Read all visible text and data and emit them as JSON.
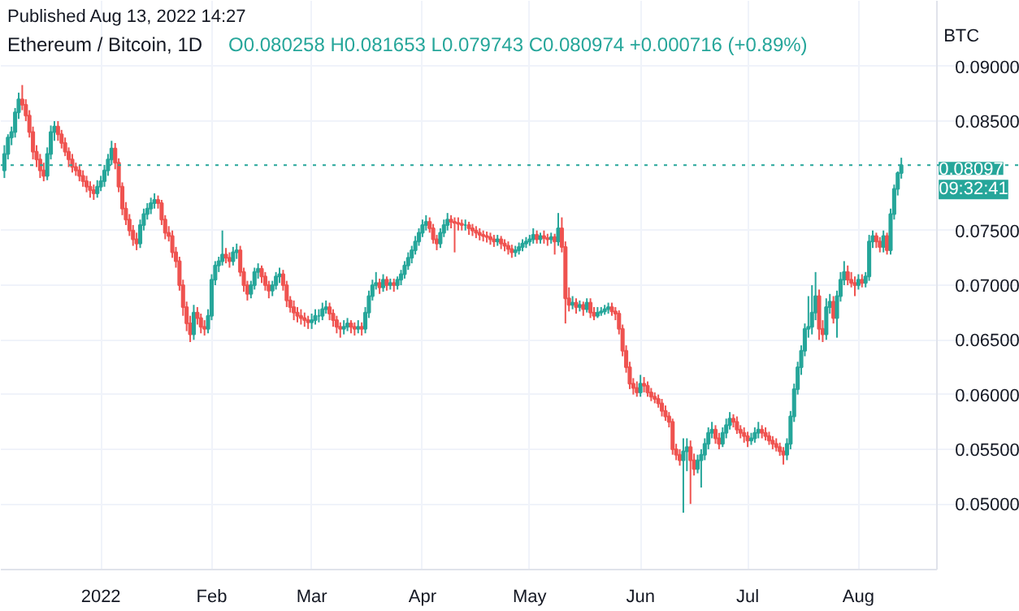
{
  "chart_data": {
    "type": "candlestick",
    "title": "Ethereum / Bitcoin, 1D",
    "subtitle": "O0.080258 H0.081653 L0.079743 C0.080974 +0.000716 (+0.89%)",
    "ylabel": "BTC",
    "annotations": [
      "Published Aug 13, 2022 14:27",
      "09:32:41"
    ],
    "xlim": [
      "2021-12-04",
      "2022-08-23"
    ],
    "xticks": [
      {
        "value": "2022-01-01",
        "label": "2022"
      },
      {
        "value": "2022-02-01",
        "label": "Feb"
      },
      {
        "value": "2022-03-01",
        "label": "Mar"
      },
      {
        "value": "2022-04-01",
        "label": "Apr"
      },
      {
        "value": "2022-05-01",
        "label": "May"
      },
      {
        "value": "2022-06-01",
        "label": "Jun"
      },
      {
        "value": "2022-07-01",
        "label": "Jul"
      },
      {
        "value": "2022-08-01",
        "label": "Aug"
      }
    ],
    "ylim": [
      0.044,
      0.096
    ],
    "yticks": [
      {
        "value": 0.05,
        "label": "0.05000"
      },
      {
        "value": 0.055,
        "label": "0.05500"
      },
      {
        "value": 0.06,
        "label": "0.06000"
      },
      {
        "value": 0.065,
        "label": "0.06500"
      },
      {
        "value": 0.07,
        "label": "0.07000"
      },
      {
        "value": 0.075,
        "label": "0.07500"
      },
      {
        "value": 0.085,
        "label": "0.08500"
      },
      {
        "value": 0.09,
        "label": "0.09000"
      }
    ],
    "grid": true,
    "ref_lines": [
      {
        "axis": "y",
        "value": 0.08097,
        "label": "0.08097",
        "color": "#26a69a",
        "line_style": "dotted"
      }
    ],
    "x": [
      "2021-12-05",
      "2021-12-06",
      "2021-12-07",
      "2021-12-08",
      "2021-12-09",
      "2021-12-10",
      "2021-12-11",
      "2021-12-12",
      "2021-12-13",
      "2021-12-14",
      "2021-12-15",
      "2021-12-16",
      "2021-12-17",
      "2021-12-18",
      "2021-12-19",
      "2021-12-20",
      "2021-12-21",
      "2021-12-22",
      "2021-12-23",
      "2021-12-24",
      "2021-12-25",
      "2021-12-26",
      "2021-12-27",
      "2021-12-28",
      "2021-12-29",
      "2021-12-30",
      "2021-12-31",
      "2022-01-01",
      "2022-01-02",
      "2022-01-03",
      "2022-01-04",
      "2022-01-05",
      "2022-01-06",
      "2022-01-07",
      "2022-01-08",
      "2022-01-09",
      "2022-01-10",
      "2022-01-11",
      "2022-01-12",
      "2022-01-13",
      "2022-01-14",
      "2022-01-15",
      "2022-01-16",
      "2022-01-17",
      "2022-01-18",
      "2022-01-19",
      "2022-01-20",
      "2022-01-21",
      "2022-01-22",
      "2022-01-23",
      "2022-01-24",
      "2022-01-25",
      "2022-01-26",
      "2022-01-27",
      "2022-01-28",
      "2022-01-29",
      "2022-01-30",
      "2022-01-31",
      "2022-02-01",
      "2022-02-02",
      "2022-02-03",
      "2022-02-04",
      "2022-02-05",
      "2022-02-06",
      "2022-02-07",
      "2022-02-08",
      "2022-02-09",
      "2022-02-10",
      "2022-02-11",
      "2022-02-12",
      "2022-02-13",
      "2022-02-14",
      "2022-02-15",
      "2022-02-16",
      "2022-02-17",
      "2022-02-18",
      "2022-02-19",
      "2022-02-20",
      "2022-02-21",
      "2022-02-22",
      "2022-02-23",
      "2022-02-24",
      "2022-02-25",
      "2022-02-26",
      "2022-02-27",
      "2022-02-28",
      "2022-03-01",
      "2022-03-02",
      "2022-03-03",
      "2022-03-04",
      "2022-03-05",
      "2022-03-06",
      "2022-03-07",
      "2022-03-08",
      "2022-03-09",
      "2022-03-10",
      "2022-03-11",
      "2022-03-12",
      "2022-03-13",
      "2022-03-14",
      "2022-03-15",
      "2022-03-16",
      "2022-03-17",
      "2022-03-18",
      "2022-03-19",
      "2022-03-20",
      "2022-03-21",
      "2022-03-22",
      "2022-03-23",
      "2022-03-24",
      "2022-03-25",
      "2022-03-26",
      "2022-03-27",
      "2022-03-28",
      "2022-03-29",
      "2022-03-30",
      "2022-03-31",
      "2022-04-01",
      "2022-04-02",
      "2022-04-03",
      "2022-04-04",
      "2022-04-05",
      "2022-04-06",
      "2022-04-07",
      "2022-04-08",
      "2022-04-09",
      "2022-04-10",
      "2022-04-11",
      "2022-04-12",
      "2022-04-13",
      "2022-04-14",
      "2022-04-15",
      "2022-04-16",
      "2022-04-17",
      "2022-04-18",
      "2022-04-19",
      "2022-04-20",
      "2022-04-21",
      "2022-04-22",
      "2022-04-23",
      "2022-04-24",
      "2022-04-25",
      "2022-04-26",
      "2022-04-27",
      "2022-04-28",
      "2022-04-29",
      "2022-04-30",
      "2022-05-01",
      "2022-05-02",
      "2022-05-03",
      "2022-05-04",
      "2022-05-05",
      "2022-05-06",
      "2022-05-07",
      "2022-05-08",
      "2022-05-09",
      "2022-05-10",
      "2022-05-11",
      "2022-05-12",
      "2022-05-13",
      "2022-05-14",
      "2022-05-15",
      "2022-05-16",
      "2022-05-17",
      "2022-05-18",
      "2022-05-19",
      "2022-05-20",
      "2022-05-21",
      "2022-05-22",
      "2022-05-23",
      "2022-05-24",
      "2022-05-25",
      "2022-05-26",
      "2022-05-27",
      "2022-05-28",
      "2022-05-29",
      "2022-05-30",
      "2022-05-31",
      "2022-06-01",
      "2022-06-02",
      "2022-06-03",
      "2022-06-04",
      "2022-06-05",
      "2022-06-06",
      "2022-06-07",
      "2022-06-08",
      "2022-06-09",
      "2022-06-10",
      "2022-06-11",
      "2022-06-12",
      "2022-06-13",
      "2022-06-14",
      "2022-06-15",
      "2022-06-16",
      "2022-06-17",
      "2022-06-18",
      "2022-06-19",
      "2022-06-20",
      "2022-06-21",
      "2022-06-22",
      "2022-06-23",
      "2022-06-24",
      "2022-06-25",
      "2022-06-26",
      "2022-06-27",
      "2022-06-28",
      "2022-06-29",
      "2022-06-30",
      "2022-07-01",
      "2022-07-02",
      "2022-07-03",
      "2022-07-04",
      "2022-07-05",
      "2022-07-06",
      "2022-07-07",
      "2022-07-08",
      "2022-07-09",
      "2022-07-10",
      "2022-07-11",
      "2022-07-12",
      "2022-07-13",
      "2022-07-14",
      "2022-07-15",
      "2022-07-16",
      "2022-07-17",
      "2022-07-18",
      "2022-07-19",
      "2022-07-20",
      "2022-07-21",
      "2022-07-22",
      "2022-07-23",
      "2022-07-24",
      "2022-07-25",
      "2022-07-26",
      "2022-07-27",
      "2022-07-28",
      "2022-07-29",
      "2022-07-30",
      "2022-07-31",
      "2022-08-01",
      "2022-08-02",
      "2022-08-03",
      "2022-08-04",
      "2022-08-05",
      "2022-08-06",
      "2022-08-07",
      "2022-08-08",
      "2022-08-09",
      "2022-08-10",
      "2022-08-11",
      "2022-08-12",
      "2022-08-13"
    ],
    "ohlc": [
      [
        0.0805,
        0.0828,
        0.0798,
        0.082
      ],
      [
        0.082,
        0.0838,
        0.0815,
        0.0835
      ],
      [
        0.0835,
        0.0845,
        0.0828,
        0.084
      ],
      [
        0.084,
        0.0862,
        0.0835,
        0.0858
      ],
      [
        0.0858,
        0.0876,
        0.0852,
        0.087
      ],
      [
        0.087,
        0.0883,
        0.086,
        0.0865
      ],
      [
        0.0865,
        0.087,
        0.085,
        0.0855
      ],
      [
        0.0855,
        0.086,
        0.0835,
        0.084
      ],
      [
        0.084,
        0.0845,
        0.0815,
        0.0822
      ],
      [
        0.0822,
        0.0828,
        0.0808,
        0.0815
      ],
      [
        0.0815,
        0.082,
        0.0798,
        0.0805
      ],
      [
        0.0805,
        0.0812,
        0.0795,
        0.08
      ],
      [
        0.08,
        0.0826,
        0.0796,
        0.082
      ],
      [
        0.082,
        0.0846,
        0.0815,
        0.084
      ],
      [
        0.084,
        0.085,
        0.0832,
        0.0845
      ],
      [
        0.0845,
        0.085,
        0.0832,
        0.0838
      ],
      [
        0.0838,
        0.0842,
        0.0825,
        0.083
      ],
      [
        0.083,
        0.0835,
        0.0818,
        0.0822
      ],
      [
        0.0822,
        0.0826,
        0.0808,
        0.0815
      ],
      [
        0.0815,
        0.082,
        0.0803,
        0.0808
      ],
      [
        0.0808,
        0.0812,
        0.08,
        0.0805
      ],
      [
        0.0805,
        0.081,
        0.0795,
        0.08
      ],
      [
        0.08,
        0.0805,
        0.079,
        0.0795
      ],
      [
        0.0795,
        0.08,
        0.0785,
        0.079
      ],
      [
        0.079,
        0.0795,
        0.078,
        0.0787
      ],
      [
        0.0787,
        0.0792,
        0.0778,
        0.0784
      ],
      [
        0.0784,
        0.0796,
        0.078,
        0.079
      ],
      [
        0.079,
        0.08,
        0.0786,
        0.0795
      ],
      [
        0.0795,
        0.081,
        0.079,
        0.0805
      ],
      [
        0.0805,
        0.082,
        0.08,
        0.0815
      ],
      [
        0.0815,
        0.0832,
        0.081,
        0.0825
      ],
      [
        0.0825,
        0.083,
        0.0806,
        0.0812
      ],
      [
        0.0812,
        0.0816,
        0.0785,
        0.079
      ],
      [
        0.079,
        0.0794,
        0.0764,
        0.077
      ],
      [
        0.077,
        0.0776,
        0.0755,
        0.076
      ],
      [
        0.076,
        0.0765,
        0.0745,
        0.075
      ],
      [
        0.075,
        0.0755,
        0.0736,
        0.0742
      ],
      [
        0.0742,
        0.0748,
        0.0732,
        0.0738
      ],
      [
        0.0738,
        0.076,
        0.0734,
        0.0755
      ],
      [
        0.0755,
        0.077,
        0.075,
        0.0765
      ],
      [
        0.0765,
        0.0775,
        0.076,
        0.077
      ],
      [
        0.077,
        0.078,
        0.0765,
        0.0775
      ],
      [
        0.0775,
        0.0784,
        0.077,
        0.0778
      ],
      [
        0.0778,
        0.0782,
        0.077,
        0.0775
      ],
      [
        0.0775,
        0.0778,
        0.0755,
        0.076
      ],
      [
        0.076,
        0.0764,
        0.0742,
        0.0748
      ],
      [
        0.0748,
        0.0754,
        0.074,
        0.0745
      ],
      [
        0.0745,
        0.075,
        0.0725,
        0.073
      ],
      [
        0.073,
        0.0735,
        0.0716,
        0.0722
      ],
      [
        0.0722,
        0.0726,
        0.0695,
        0.07
      ],
      [
        0.07,
        0.0705,
        0.0672,
        0.068
      ],
      [
        0.068,
        0.0685,
        0.0658,
        0.0665
      ],
      [
        0.0665,
        0.0672,
        0.0648,
        0.0655
      ],
      [
        0.0655,
        0.0682,
        0.065,
        0.0675
      ],
      [
        0.0675,
        0.068,
        0.0664,
        0.067
      ],
      [
        0.067,
        0.0674,
        0.0656,
        0.0662
      ],
      [
        0.0662,
        0.0668,
        0.0654,
        0.066
      ],
      [
        0.066,
        0.0678,
        0.0656,
        0.0672
      ],
      [
        0.0672,
        0.071,
        0.0668,
        0.0705
      ],
      [
        0.0705,
        0.0722,
        0.07,
        0.0718
      ],
      [
        0.0718,
        0.0726,
        0.0712,
        0.0722
      ],
      [
        0.0722,
        0.075,
        0.0718,
        0.0728
      ],
      [
        0.0728,
        0.0734,
        0.072,
        0.0725
      ],
      [
        0.0725,
        0.073,
        0.0716,
        0.0722
      ],
      [
        0.0722,
        0.0735,
        0.0718,
        0.073
      ],
      [
        0.073,
        0.0738,
        0.0724,
        0.0732
      ],
      [
        0.0732,
        0.0736,
        0.0708,
        0.0712
      ],
      [
        0.0712,
        0.0716,
        0.0694,
        0.07
      ],
      [
        0.07,
        0.0704,
        0.0686,
        0.0692
      ],
      [
        0.0692,
        0.0704,
        0.0688,
        0.07
      ],
      [
        0.07,
        0.0716,
        0.0696,
        0.0712
      ],
      [
        0.0712,
        0.072,
        0.0706,
        0.0715
      ],
      [
        0.0715,
        0.0718,
        0.0702,
        0.0708
      ],
      [
        0.0708,
        0.0712,
        0.0695,
        0.07
      ],
      [
        0.07,
        0.0704,
        0.0688,
        0.0695
      ],
      [
        0.0695,
        0.0704,
        0.069,
        0.07
      ],
      [
        0.07,
        0.0712,
        0.0696,
        0.0708
      ],
      [
        0.0708,
        0.0716,
        0.0702,
        0.071
      ],
      [
        0.071,
        0.0714,
        0.0695,
        0.07
      ],
      [
        0.07,
        0.0704,
        0.068,
        0.0686
      ],
      [
        0.0686,
        0.069,
        0.0675,
        0.068
      ],
      [
        0.068,
        0.0686,
        0.0668,
        0.0675
      ],
      [
        0.0675,
        0.068,
        0.0666,
        0.0672
      ],
      [
        0.0672,
        0.0678,
        0.0664,
        0.067
      ],
      [
        0.067,
        0.0675,
        0.0662,
        0.0668
      ],
      [
        0.0668,
        0.0672,
        0.066,
        0.0666
      ],
      [
        0.0666,
        0.0674,
        0.066,
        0.0668
      ],
      [
        0.0668,
        0.0678,
        0.0664,
        0.0672
      ],
      [
        0.0672,
        0.0678,
        0.0666,
        0.0672
      ],
      [
        0.0672,
        0.0684,
        0.0668,
        0.0678
      ],
      [
        0.0678,
        0.0686,
        0.0674,
        0.068
      ],
      [
        0.068,
        0.0684,
        0.0668,
        0.0674
      ],
      [
        0.0674,
        0.0678,
        0.0662,
        0.0668
      ],
      [
        0.0668,
        0.0672,
        0.0656,
        0.0662
      ],
      [
        0.0662,
        0.0666,
        0.0652,
        0.066
      ],
      [
        0.066,
        0.0668,
        0.0655,
        0.0662
      ],
      [
        0.0662,
        0.067,
        0.0658,
        0.0665
      ],
      [
        0.0665,
        0.0668,
        0.0656,
        0.0662
      ],
      [
        0.0662,
        0.0666,
        0.0654,
        0.066
      ],
      [
        0.066,
        0.0668,
        0.0656,
        0.0662
      ],
      [
        0.0662,
        0.0666,
        0.0654,
        0.066
      ],
      [
        0.066,
        0.068,
        0.0656,
        0.0675
      ],
      [
        0.0675,
        0.0695,
        0.067,
        0.069
      ],
      [
        0.069,
        0.0705,
        0.0686,
        0.07
      ],
      [
        0.07,
        0.0712,
        0.0696,
        0.0702
      ],
      [
        0.0702,
        0.0706,
        0.0692,
        0.0698
      ],
      [
        0.0698,
        0.071,
        0.0694,
        0.0705
      ],
      [
        0.0705,
        0.0708,
        0.0695,
        0.07
      ],
      [
        0.07,
        0.0706,
        0.0696,
        0.0702
      ],
      [
        0.0702,
        0.0706,
        0.0694,
        0.07
      ],
      [
        0.07,
        0.0708,
        0.0696,
        0.0705
      ],
      [
        0.0705,
        0.0714,
        0.07,
        0.071
      ],
      [
        0.071,
        0.0722,
        0.0706,
        0.0718
      ],
      [
        0.0718,
        0.073,
        0.0714,
        0.0725
      ],
      [
        0.0725,
        0.0736,
        0.072,
        0.0732
      ],
      [
        0.0732,
        0.0745,
        0.0728,
        0.074
      ],
      [
        0.074,
        0.0752,
        0.0736,
        0.0748
      ],
      [
        0.0748,
        0.076,
        0.0744,
        0.0755
      ],
      [
        0.0755,
        0.0764,
        0.075,
        0.0758
      ],
      [
        0.0758,
        0.0762,
        0.0748,
        0.0752
      ],
      [
        0.0752,
        0.0756,
        0.0738,
        0.0742
      ],
      [
        0.0742,
        0.0746,
        0.0732,
        0.0738
      ],
      [
        0.0738,
        0.0752,
        0.0734,
        0.0748
      ],
      [
        0.0748,
        0.076,
        0.0744,
        0.0755
      ],
      [
        0.0755,
        0.0766,
        0.075,
        0.076
      ],
      [
        0.076,
        0.0764,
        0.0752,
        0.0758
      ],
      [
        0.0758,
        0.0762,
        0.073,
        0.0757
      ],
      [
        0.0757,
        0.0762,
        0.075,
        0.0756
      ],
      [
        0.0756,
        0.076,
        0.075,
        0.0755
      ],
      [
        0.0755,
        0.076,
        0.075,
        0.0755
      ],
      [
        0.0755,
        0.0758,
        0.0746,
        0.0752
      ],
      [
        0.0752,
        0.0756,
        0.0745,
        0.075
      ],
      [
        0.075,
        0.0754,
        0.0743,
        0.0748
      ],
      [
        0.0748,
        0.0752,
        0.0741,
        0.0746
      ],
      [
        0.0746,
        0.075,
        0.074,
        0.0745
      ],
      [
        0.0745,
        0.0749,
        0.0739,
        0.0744
      ],
      [
        0.0744,
        0.0748,
        0.0737,
        0.0742
      ],
      [
        0.0742,
        0.0746,
        0.0735,
        0.074
      ],
      [
        0.074,
        0.0746,
        0.0736,
        0.0742
      ],
      [
        0.0742,
        0.0745,
        0.0733,
        0.0738
      ],
      [
        0.0738,
        0.0742,
        0.0731,
        0.0736
      ],
      [
        0.0736,
        0.074,
        0.0728,
        0.0733
      ],
      [
        0.0733,
        0.0737,
        0.0725,
        0.073
      ],
      [
        0.073,
        0.0736,
        0.0726,
        0.0732
      ],
      [
        0.0732,
        0.0739,
        0.0728,
        0.0735
      ],
      [
        0.0735,
        0.0742,
        0.0731,
        0.0738
      ],
      [
        0.0738,
        0.0744,
        0.0734,
        0.074
      ],
      [
        0.074,
        0.0746,
        0.0736,
        0.0742
      ],
      [
        0.0742,
        0.0752,
        0.0738,
        0.0746
      ],
      [
        0.0746,
        0.075,
        0.0738,
        0.0742
      ],
      [
        0.0742,
        0.0748,
        0.0738,
        0.0745
      ],
      [
        0.0745,
        0.075,
        0.0738,
        0.0743
      ],
      [
        0.0743,
        0.0747,
        0.0736,
        0.0742
      ],
      [
        0.0742,
        0.0748,
        0.0738,
        0.0744
      ],
      [
        0.0744,
        0.0747,
        0.0728,
        0.074
      ],
      [
        0.074,
        0.0766,
        0.0736,
        0.0752
      ],
      [
        0.0752,
        0.0762,
        0.073,
        0.0735
      ],
      [
        0.0735,
        0.074,
        0.0665,
        0.0688
      ],
      [
        0.0688,
        0.0698,
        0.0676,
        0.0682
      ],
      [
        0.0682,
        0.069,
        0.0678,
        0.0684
      ],
      [
        0.0684,
        0.0688,
        0.0674,
        0.068
      ],
      [
        0.068,
        0.0686,
        0.0676,
        0.0682
      ],
      [
        0.0682,
        0.0685,
        0.0672,
        0.0678
      ],
      [
        0.0678,
        0.0688,
        0.0675,
        0.0684
      ],
      [
        0.0684,
        0.0688,
        0.067,
        0.0675
      ],
      [
        0.0675,
        0.068,
        0.0668,
        0.0672
      ],
      [
        0.0672,
        0.068,
        0.067,
        0.0675
      ],
      [
        0.0675,
        0.068,
        0.0672,
        0.0676
      ],
      [
        0.0676,
        0.0682,
        0.0673,
        0.0678
      ],
      [
        0.0678,
        0.0684,
        0.0674,
        0.068
      ],
      [
        0.068,
        0.0684,
        0.0672,
        0.0676
      ],
      [
        0.0676,
        0.068,
        0.0668,
        0.0674
      ],
      [
        0.0674,
        0.0677,
        0.0655,
        0.066
      ],
      [
        0.066,
        0.0664,
        0.0635,
        0.064
      ],
      [
        0.064,
        0.0645,
        0.062,
        0.0625
      ],
      [
        0.0625,
        0.063,
        0.0605,
        0.061
      ],
      [
        0.061,
        0.0615,
        0.06,
        0.0606
      ],
      [
        0.0606,
        0.0612,
        0.0598,
        0.0602
      ],
      [
        0.0602,
        0.0618,
        0.0598,
        0.061
      ],
      [
        0.061,
        0.0616,
        0.0602,
        0.0608
      ],
      [
        0.0608,
        0.0612,
        0.0598,
        0.0602
      ],
      [
        0.0602,
        0.0606,
        0.0594,
        0.0598
      ],
      [
        0.0598,
        0.0602,
        0.0592,
        0.0596
      ],
      [
        0.0596,
        0.06,
        0.0588,
        0.0592
      ],
      [
        0.0592,
        0.0596,
        0.058,
        0.0585
      ],
      [
        0.0585,
        0.059,
        0.0576,
        0.058
      ],
      [
        0.058,
        0.0584,
        0.057,
        0.0575
      ],
      [
        0.0575,
        0.0578,
        0.0545,
        0.055
      ],
      [
        0.055,
        0.0555,
        0.054,
        0.0545
      ],
      [
        0.0545,
        0.055,
        0.0535,
        0.054
      ],
      [
        0.054,
        0.056,
        0.0492,
        0.0548
      ],
      [
        0.0548,
        0.056,
        0.053,
        0.0552
      ],
      [
        0.0552,
        0.0558,
        0.05,
        0.054
      ],
      [
        0.054,
        0.0546,
        0.0526,
        0.0532
      ],
      [
        0.0532,
        0.0545,
        0.0528,
        0.054
      ],
      [
        0.054,
        0.055,
        0.0515,
        0.0545
      ],
      [
        0.0545,
        0.056,
        0.054,
        0.0555
      ],
      [
        0.0555,
        0.057,
        0.055,
        0.0565
      ],
      [
        0.0565,
        0.0575,
        0.056,
        0.0568
      ],
      [
        0.0568,
        0.0572,
        0.0555,
        0.056
      ],
      [
        0.056,
        0.0565,
        0.055,
        0.0555
      ],
      [
        0.0555,
        0.057,
        0.0552,
        0.0565
      ],
      [
        0.0565,
        0.0578,
        0.056,
        0.0572
      ],
      [
        0.0572,
        0.0584,
        0.0568,
        0.0578
      ],
      [
        0.0578,
        0.0582,
        0.057,
        0.0575
      ],
      [
        0.0575,
        0.058,
        0.0564,
        0.0568
      ],
      [
        0.0568,
        0.0572,
        0.056,
        0.0565
      ],
      [
        0.0565,
        0.057,
        0.0556,
        0.0562
      ],
      [
        0.0562,
        0.0566,
        0.0552,
        0.0558
      ],
      [
        0.0558,
        0.0565,
        0.0554,
        0.056
      ],
      [
        0.056,
        0.057,
        0.0556,
        0.0565
      ],
      [
        0.0565,
        0.0575,
        0.056,
        0.0568
      ],
      [
        0.0568,
        0.0572,
        0.056,
        0.0565
      ],
      [
        0.0565,
        0.057,
        0.0558,
        0.0562
      ],
      [
        0.0562,
        0.0566,
        0.0554,
        0.0558
      ],
      [
        0.0558,
        0.0562,
        0.055,
        0.0555
      ],
      [
        0.0555,
        0.056,
        0.0548,
        0.0552
      ],
      [
        0.0552,
        0.0556,
        0.0544,
        0.0548
      ],
      [
        0.0548,
        0.0552,
        0.0536,
        0.0545
      ],
      [
        0.0545,
        0.056,
        0.054,
        0.0555
      ],
      [
        0.0555,
        0.0585,
        0.055,
        0.058
      ],
      [
        0.058,
        0.061,
        0.0575,
        0.0605
      ],
      [
        0.0605,
        0.063,
        0.06,
        0.0625
      ],
      [
        0.0625,
        0.0645,
        0.0618,
        0.064
      ],
      [
        0.064,
        0.0665,
        0.0635,
        0.066
      ],
      [
        0.066,
        0.069,
        0.0652,
        0.0662
      ],
      [
        0.0662,
        0.07,
        0.0655,
        0.0675
      ],
      [
        0.0675,
        0.0712,
        0.0668,
        0.069
      ],
      [
        0.069,
        0.0696,
        0.065,
        0.066
      ],
      [
        0.066,
        0.0668,
        0.0648,
        0.0655
      ],
      [
        0.0655,
        0.0688,
        0.065,
        0.068
      ],
      [
        0.068,
        0.0692,
        0.0674,
        0.0685
      ],
      [
        0.0685,
        0.069,
        0.0665,
        0.067
      ],
      [
        0.067,
        0.0695,
        0.0652,
        0.069
      ],
      [
        0.069,
        0.0712,
        0.0685,
        0.0705
      ],
      [
        0.0705,
        0.0722,
        0.07,
        0.0712
      ],
      [
        0.0712,
        0.0718,
        0.07,
        0.0705
      ],
      [
        0.0705,
        0.0712,
        0.0698,
        0.0702
      ],
      [
        0.0702,
        0.0708,
        0.069,
        0.07
      ],
      [
        0.07,
        0.071,
        0.0696,
        0.0705
      ],
      [
        0.0705,
        0.071,
        0.0698,
        0.0702
      ],
      [
        0.0702,
        0.0712,
        0.0698,
        0.0708
      ],
      [
        0.0708,
        0.0746,
        0.0704,
        0.074
      ],
      [
        0.074,
        0.075,
        0.0734,
        0.0745
      ],
      [
        0.0745,
        0.0748,
        0.0734,
        0.074
      ],
      [
        0.074,
        0.0744,
        0.073,
        0.0735
      ],
      [
        0.0735,
        0.075,
        0.073,
        0.0745
      ],
      [
        0.0745,
        0.0748,
        0.0728,
        0.0732
      ],
      [
        0.0732,
        0.077,
        0.0728,
        0.0765
      ],
      [
        0.0765,
        0.0792,
        0.076,
        0.0788
      ],
      [
        0.0788,
        0.0804,
        0.0782,
        0.080258
      ],
      [
        0.080258,
        0.081653,
        0.079743,
        0.080974
      ]
    ]
  }
}
